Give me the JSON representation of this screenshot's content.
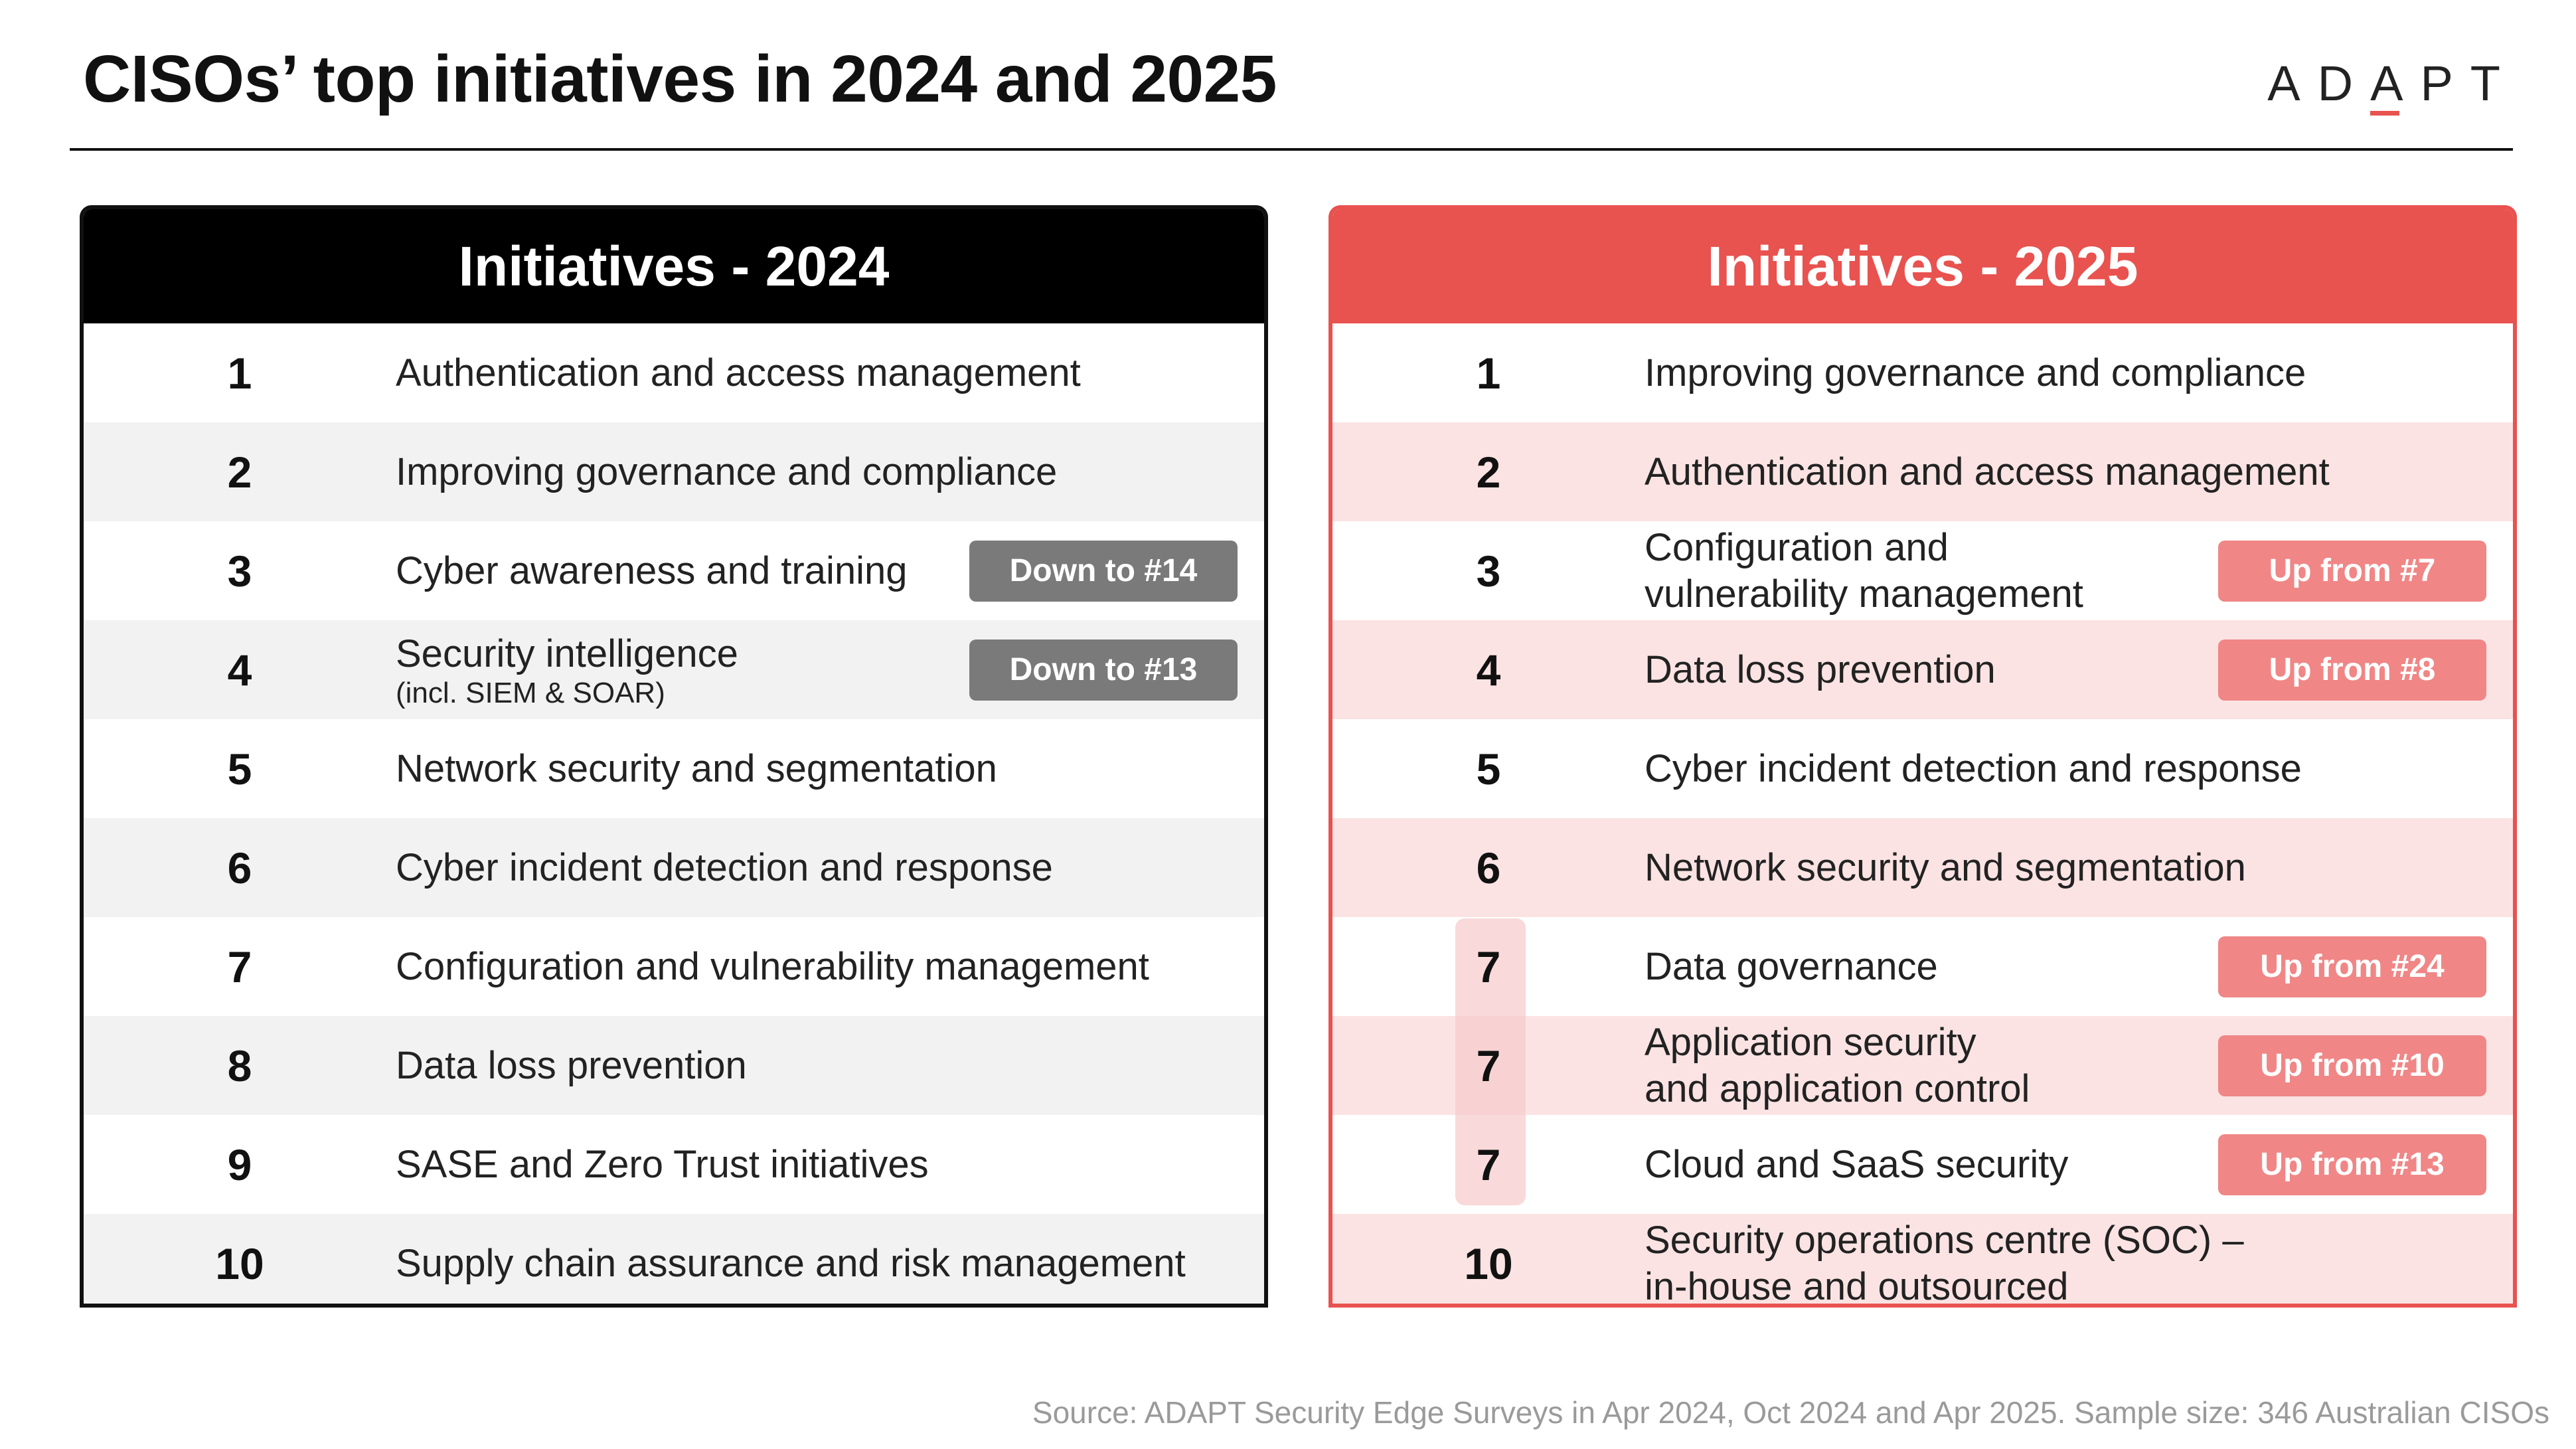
{
  "title": "CISOs’ top initiatives in 2024 and 2025",
  "logo": {
    "text_before": "AD",
    "text_accent": "A",
    "text_after": "PT"
  },
  "colors": {
    "accent": "#e8524f",
    "dark": "#000000",
    "down_badge": "#7a7a7a",
    "up_badge": "#f08686"
  },
  "panel_2024": {
    "header": "Initiatives - 2024",
    "rows": [
      {
        "rank": "1",
        "label": "Authentication and access management",
        "sub": "",
        "badge": ""
      },
      {
        "rank": "2",
        "label": "Improving governance and compliance",
        "sub": "",
        "badge": ""
      },
      {
        "rank": "3",
        "label": "Cyber awareness and training",
        "sub": "",
        "badge": "Down to #14"
      },
      {
        "rank": "4",
        "label": "Security intelligence",
        "sub": "(incl. SIEM & SOAR)",
        "badge": "Down to #13"
      },
      {
        "rank": "5",
        "label": "Network security and segmentation",
        "sub": "",
        "badge": ""
      },
      {
        "rank": "6",
        "label": "Cyber incident detection and response",
        "sub": "",
        "badge": ""
      },
      {
        "rank": "7",
        "label": "Configuration and vulnerability management",
        "sub": "",
        "badge": ""
      },
      {
        "rank": "8",
        "label": "Data loss prevention",
        "sub": "",
        "badge": ""
      },
      {
        "rank": "9",
        "label": "SASE and Zero Trust initiatives",
        "sub": "",
        "badge": ""
      },
      {
        "rank": "10",
        "label": "Supply chain assurance and risk management",
        "sub": "",
        "badge": ""
      }
    ]
  },
  "panel_2025": {
    "header": "Initiatives - 2025",
    "rows": [
      {
        "rank": "1",
        "label_line1": "Improving governance and compliance",
        "label_line2": "",
        "badge": ""
      },
      {
        "rank": "2",
        "label_line1": "Authentication and access management",
        "label_line2": "",
        "badge": ""
      },
      {
        "rank": "3",
        "label_line1": "Configuration and",
        "label_line2": "vulnerability management",
        "badge": "Up from #7"
      },
      {
        "rank": "4",
        "label_line1": "Data loss prevention",
        "label_line2": "",
        "badge": "Up from #8"
      },
      {
        "rank": "5",
        "label_line1": "Cyber incident detection and response",
        "label_line2": "",
        "badge": ""
      },
      {
        "rank": "6",
        "label_line1": "Network security and segmentation",
        "label_line2": "",
        "badge": ""
      },
      {
        "rank": "7",
        "label_line1": "Data governance",
        "label_line2": "",
        "badge": "Up from #24"
      },
      {
        "rank": "7",
        "label_line1": "Application security",
        "label_line2": "and application control",
        "badge": "Up from #10"
      },
      {
        "rank": "7",
        "label_line1": "Cloud and SaaS security",
        "label_line2": "",
        "badge": "Up from #13"
      },
      {
        "rank": "10",
        "label_line1": "Security operations centre (SOC) –",
        "label_line2": "in-house and outsourced",
        "badge": ""
      }
    ]
  },
  "source": "Source: ADAPT Security Edge Surveys in Apr 2024, Oct 2024 and Apr 2025. Sample size: 346 Australian CISOs"
}
